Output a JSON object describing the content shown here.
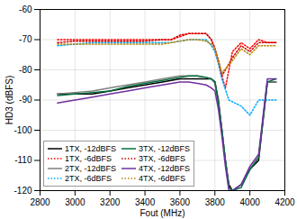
{
  "chart_data": {
    "type": "line",
    "xlabel": "Fout (MHz)",
    "ylabel": "HD3 (dBFS)",
    "xlim": [
      2800,
      4200
    ],
    "ylim": [
      -120,
      -60
    ],
    "xticks": [
      2800,
      3000,
      3200,
      3400,
      3600,
      3800,
      4000,
      4200
    ],
    "yticks": [
      -120,
      -110,
      -100,
      -90,
      -80,
      -70,
      -60
    ],
    "grid": true,
    "legend": "lower left",
    "series": [
      {
        "name": "1TX, -12dBFS",
        "color": "#000000",
        "line_style": "solid",
        "x": [
          2900,
          3000,
          3100,
          3200,
          3300,
          3400,
          3500,
          3600,
          3650,
          3700,
          3750,
          3780,
          3800,
          3820,
          3840,
          3860,
          3880,
          3900,
          3950,
          4000,
          4050,
          4100,
          4150
        ],
        "values": [
          -88,
          -88,
          -88,
          -87,
          -86,
          -85,
          -84,
          -83,
          -83,
          -83,
          -83,
          -83,
          -84,
          -90,
          -100,
          -110,
          -118,
          -120,
          -118,
          -113,
          -110,
          -84,
          -84
        ]
      },
      {
        "name": "1TX, -6dBFS",
        "color": "#ff0000",
        "line_style": "dotted",
        "x": [
          2900,
          3000,
          3100,
          3200,
          3300,
          3400,
          3500,
          3550,
          3600,
          3650,
          3700,
          3750,
          3780,
          3800,
          3820,
          3840,
          3860,
          3900,
          3950,
          4000,
          4050,
          4100,
          4150
        ],
        "values": [
          -70,
          -70,
          -70,
          -70,
          -70,
          -70,
          -70,
          -70,
          -69,
          -68,
          -68,
          -68,
          -70,
          -73,
          -77,
          -82,
          -86,
          -74,
          -71,
          -73,
          -70,
          -71,
          -71
        ]
      },
      {
        "name": "2TX, -12dBFS",
        "color": "#808080",
        "line_style": "solid",
        "x": [
          2900,
          3000,
          3100,
          3200,
          3300,
          3400,
          3500,
          3600,
          3650,
          3700,
          3750,
          3780,
          3800,
          3820,
          3840,
          3860,
          3880,
          3900,
          3950,
          4000,
          4050,
          4100,
          4150
        ],
        "values": [
          -88,
          -87.5,
          -87,
          -86,
          -85,
          -84,
          -83,
          -82,
          -82,
          -82,
          -82.5,
          -83,
          -84.5,
          -91,
          -100,
          -110,
          -119,
          -120,
          -118,
          -113,
          -109,
          -84,
          -84
        ]
      },
      {
        "name": "2TX, -6dBFS",
        "color": "#00aaff",
        "line_style": "dotted",
        "x": [
          2900,
          3000,
          3100,
          3200,
          3300,
          3400,
          3500,
          3550,
          3600,
          3650,
          3700,
          3750,
          3780,
          3800,
          3820,
          3840,
          3880,
          3950,
          4000,
          4050,
          4100,
          4150
        ],
        "values": [
          -72,
          -71.5,
          -71,
          -71,
          -71,
          -71,
          -71,
          -71,
          -70.5,
          -70,
          -70,
          -70,
          -72,
          -74,
          -78,
          -83,
          -90,
          -92,
          -95,
          -90,
          -90,
          -90
        ]
      },
      {
        "name": "3TX, -12dBFS",
        "color": "#007040",
        "line_style": "solid",
        "x": [
          2900,
          3000,
          3100,
          3200,
          3300,
          3400,
          3500,
          3600,
          3650,
          3700,
          3750,
          3780,
          3800,
          3820,
          3840,
          3860,
          3880,
          3900,
          3950,
          4000,
          4050,
          4100,
          4150
        ],
        "values": [
          -88.5,
          -88,
          -87.5,
          -87,
          -85.5,
          -84.5,
          -83.5,
          -82.5,
          -82,
          -82,
          -82.5,
          -83,
          -84,
          -91,
          -100,
          -110,
          -119,
          -120,
          -119,
          -113,
          -109,
          -84,
          -83
        ]
      },
      {
        "name": "3TX, -6dBFS",
        "color": "#cc0000",
        "line_style": "dotted",
        "x": [
          2900,
          3000,
          3100,
          3200,
          3300,
          3400,
          3500,
          3550,
          3600,
          3650,
          3700,
          3750,
          3780,
          3800,
          3820,
          3840,
          3900,
          3950,
          4000,
          4050,
          4100,
          4150
        ],
        "values": [
          -71,
          -70.5,
          -70.5,
          -70.5,
          -70.5,
          -70.5,
          -70,
          -70,
          -68.5,
          -68,
          -68,
          -68,
          -70,
          -73,
          -77,
          -82,
          -76,
          -72,
          -74,
          -71,
          -71,
          -71
        ]
      },
      {
        "name": "4TX, -12dBFS",
        "color": "#7030a0",
        "line_style": "solid",
        "x": [
          2900,
          3000,
          3100,
          3200,
          3300,
          3400,
          3500,
          3600,
          3650,
          3700,
          3750,
          3780,
          3800,
          3820,
          3840,
          3860,
          3880,
          3900,
          3950,
          4000,
          4050,
          4100,
          4150
        ],
        "values": [
          -91,
          -90,
          -89,
          -88,
          -87,
          -86,
          -85,
          -84,
          -84,
          -84.5,
          -85,
          -86,
          -87,
          -93,
          -102,
          -112,
          -120,
          -120,
          -118,
          -112,
          -108,
          -83,
          -83
        ]
      },
      {
        "name": "4TX, -6dBFS",
        "color": "#b8860b",
        "line_style": "dotted",
        "x": [
          2900,
          3000,
          3100,
          3200,
          3300,
          3400,
          3500,
          3550,
          3600,
          3650,
          3700,
          3750,
          3780,
          3800,
          3820,
          3840,
          3900,
          3950,
          4000,
          4050,
          4100,
          4150
        ],
        "values": [
          -71.5,
          -71.5,
          -71.5,
          -71.5,
          -71.5,
          -71.5,
          -71.5,
          -71,
          -70.5,
          -70,
          -70,
          -70.5,
          -71.5,
          -73,
          -77,
          -81,
          -77,
          -73,
          -75,
          -72,
          -72,
          -72
        ]
      }
    ]
  }
}
